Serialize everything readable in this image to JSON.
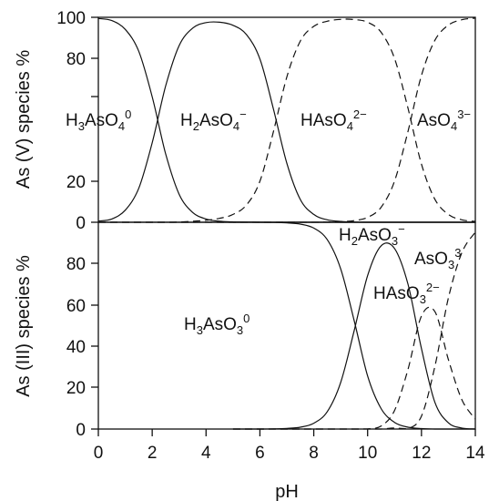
{
  "chart_data": [
    {
      "type": "line",
      "panel": "top",
      "title": "",
      "xlabel": "",
      "ylabel": "As (V) species %",
      "xlim": [
        0,
        14
      ],
      "ylim": [
        0,
        100
      ],
      "y_ticks": [
        "0",
        "20",
        "80",
        "100"
      ],
      "grid": false,
      "legend": "none",
      "pka": [
        2.2,
        6.9,
        11.5
      ],
      "x": [
        0,
        0.5,
        1,
        1.5,
        2,
        2.5,
        3,
        3.5,
        4,
        4.5,
        5,
        5.5,
        6,
        6.5,
        7,
        7.5,
        8,
        8.5,
        9,
        9.5,
        10,
        10.5,
        11,
        11.5,
        12,
        12.5,
        13,
        13.5,
        14
      ],
      "series": [
        {
          "values": [
            99.4,
            98.4,
            94.1,
            83.4,
            61.3,
            33.4,
            13.7,
            4.8,
            1.6,
            0.5,
            0.2,
            0.1,
            0,
            0,
            0,
            0,
            0,
            0,
            0,
            0,
            0,
            0,
            0,
            0,
            0,
            0,
            0,
            0,
            0
          ],
          "style": "solid"
        },
        {
          "values": [
            0.6,
            1.6,
            5.9,
            16.6,
            38.7,
            66.5,
            86.2,
            94.7,
            97.4,
            97.6,
            96.1,
            91.6,
            79.7,
            55.4,
            28.8,
            11.1,
            3.8,
            1.2,
            0.4,
            0.1,
            0,
            0,
            0,
            0,
            0,
            0,
            0,
            0,
            0
          ],
          "style": "solid"
        },
        {
          "values": [
            0,
            0,
            0,
            0,
            0,
            0,
            0.1,
            0.5,
            1.0,
            1.9,
            3.8,
            8.4,
            20.0,
            44.1,
            70.9,
            88.4,
            95.6,
            98.1,
            99.0,
            98.9,
            97.6,
            92.7,
            79.9,
            55.6,
            28.3,
            11.2,
            3.8,
            1.2,
            0.4
          ],
          "style": "dashed"
        },
        {
          "values": [
            0,
            0,
            0,
            0,
            0,
            0,
            0,
            0,
            0,
            0,
            0,
            0,
            0,
            0,
            0,
            0,
            0,
            0.1,
            0.3,
            0.8,
            2.4,
            7.3,
            20.1,
            44.4,
            71.7,
            88.8,
            96.2,
            98.8,
            99.6
          ],
          "style": "dashed"
        }
      ],
      "annotations": [
        "H3AsO40",
        "H2AsO4−",
        "HAsO42−",
        "AsO43−"
      ]
    },
    {
      "type": "line",
      "panel": "bottom",
      "title": "",
      "xlabel": "pH",
      "ylabel": "As (III) species %",
      "xlim": [
        0,
        14
      ],
      "ylim": [
        0,
        100
      ],
      "y_ticks": [
        "0",
        "20",
        "40",
        "60",
        "80"
      ],
      "x_ticks": [
        "0",
        "2",
        "4",
        "6",
        "8",
        "10",
        "12",
        "14"
      ],
      "grid": false,
      "legend": "none",
      "x": [
        5.0,
        5.5,
        6.0,
        6.5,
        7.0,
        7.5,
        8.0,
        8.5,
        9.0,
        9.5,
        10.0,
        10.5,
        11.0,
        11.5,
        12.0,
        12.5,
        13.0,
        13.5,
        14.0
      ],
      "series": [
        {
          "values": [
            100,
            100,
            100,
            99.9,
            99.7,
            99.1,
            97.2,
            91.6,
            77.5,
            52.5,
            25.7,
            9.9,
            3.2,
            0.9,
            0.2,
            0,
            0,
            0,
            0
          ],
          "style": "solid"
        },
        {
          "values": [
            0,
            0,
            0,
            0.1,
            0.3,
            0.9,
            2.8,
            8.4,
            22.5,
            47.5,
            74.2,
            88.6,
            87.3,
            70.0,
            38.8,
            12.9,
            3.0,
            0.5,
            0
          ],
          "style": "solid"
        },
        {
          "values": [
            0,
            0,
            0,
            0,
            0,
            0,
            0,
            0,
            0,
            0,
            0.1,
            1.4,
            9.0,
            28.9,
            54.7,
            56.8,
            33.6,
            14.2,
            4.8
          ],
          "style": "dashed"
        },
        {
          "values": [
            0,
            0,
            0,
            0,
            0,
            0,
            0,
            0,
            0,
            0,
            0,
            0,
            0.5,
            0.2,
            6.3,
            30.3,
            63.4,
            85.3,
            95.2
          ],
          "style": "dashed"
        }
      ],
      "annotations": [
        "H3AsO30",
        "H2AsO3−",
        "HAsO32−",
        "AsO33"
      ]
    }
  ],
  "labels": {
    "top_ylabel": "As (V) species %",
    "bottom_ylabel": "As (III) species %",
    "xlabel": "pH",
    "top_ticks": [
      "100",
      "80",
      "20",
      "0"
    ],
    "bottom_ticks": [
      "80",
      "60",
      "40",
      "20",
      "0"
    ],
    "x_ticks": [
      "0",
      "2",
      "4",
      "6",
      "8",
      "10",
      "12",
      "14"
    ],
    "top_species": [
      {
        "base": "H",
        "s1": "3",
        "mid": "AsO",
        "s2": "4",
        "sup": "0"
      },
      {
        "base": "H",
        "s1": "2",
        "mid": "AsO",
        "s2": "4",
        "sup": "−"
      },
      {
        "base": "HAsO",
        "s1": "4",
        "mid": "",
        "s2": "",
        "sup": "2−"
      },
      {
        "base": "AsO",
        "s1": "4",
        "mid": "",
        "s2": "",
        "sup": "3−"
      }
    ],
    "bottom_species": [
      {
        "base": "H",
        "s1": "3",
        "mid": "AsO",
        "s2": "3",
        "sup": "0"
      },
      {
        "base": "H",
        "s1": "2",
        "mid": "AsO",
        "s2": "3",
        "sup": "−"
      },
      {
        "base": "HAsO",
        "s1": "3",
        "mid": "",
        "s2": "",
        "sup": "2−"
      },
      {
        "base": "AsO",
        "s1": "3",
        "mid": "",
        "s2": "",
        "sup": "3"
      }
    ]
  }
}
